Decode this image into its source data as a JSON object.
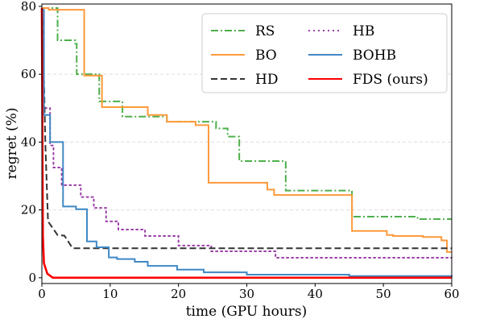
{
  "chart_data": {
    "type": "line",
    "title": "",
    "xlabel": "time (GPU hours)",
    "ylabel": "regret (%)",
    "xlim": [
      0,
      60
    ],
    "ylim": [
      -1.7,
      80.7
    ],
    "xticks": [
      0,
      10,
      20,
      30,
      40,
      50,
      60
    ],
    "yticks": [
      0,
      20,
      40,
      60,
      80
    ],
    "grid": "horizontal dashed",
    "legend_placement": "top-right",
    "series": [
      {
        "name": "RS",
        "color": "#4daf4a",
        "dash": "dashdot",
        "step": true,
        "x": [
          0,
          2.3,
          4.9,
          5.1,
          8.4,
          11.8,
          18.3,
          25.5,
          27.2,
          28.9,
          35.7,
          45.4,
          55,
          60
        ],
        "y": [
          79.5,
          70,
          69,
          60,
          52,
          47.5,
          46,
          44,
          41.6,
          34.4,
          25.7,
          18,
          17.3,
          17.3
        ]
      },
      {
        "name": "BO",
        "color": "#ff9a3c",
        "dash": "solid",
        "step": true,
        "x": [
          0,
          1,
          6.2,
          8.8,
          15.5,
          18.3,
          22.5,
          24.4,
          33,
          34,
          45.4,
          50.5,
          51.4,
          55.8,
          58.5,
          59.3,
          60
        ],
        "y": [
          79.5,
          79,
          59.6,
          50.3,
          48,
          46,
          45,
          28,
          26,
          24.4,
          13.8,
          12.6,
          12.3,
          12,
          11,
          7.6,
          7.6
        ]
      },
      {
        "name": "HD",
        "color": "#333333",
        "dash": "dashed",
        "step": false,
        "x": [
          0,
          0.35,
          0.5,
          0.9,
          2.3,
          3.3,
          4.5,
          60
        ],
        "y": [
          79,
          55,
          40,
          16.6,
          12.6,
          12.4,
          8.7,
          8.7
        ]
      },
      {
        "name": "HB",
        "color": "#9b3fa8",
        "dash": "dotted",
        "step": true,
        "x": [
          0,
          0.3,
          1.2,
          1.7,
          2.9,
          5.7,
          7.6,
          9.4,
          11.2,
          15.1,
          20,
          24.8,
          34.2,
          60
        ],
        "y": [
          79,
          50,
          39,
          32.5,
          27.3,
          23.8,
          20.6,
          16.6,
          14.2,
          12.3,
          9.5,
          7.8,
          5.9,
          5.9
        ]
      },
      {
        "name": "BOHB",
        "color": "#3f88c5",
        "dash": "solid",
        "step": true,
        "x": [
          0,
          0.3,
          1.2,
          3.1,
          5,
          6.6,
          8,
          9.8,
          11,
          13.6,
          15.5,
          19.8,
          23.7,
          30,
          45,
          60
        ],
        "y": [
          79,
          48,
          40,
          21,
          20.2,
          10.7,
          9,
          6,
          5.5,
          4.7,
          3.5,
          2.4,
          1.6,
          0.9,
          0.5,
          0.2
        ]
      },
      {
        "name": "FDS (ours)",
        "color": "#ff0000",
        "dash": "solid",
        "step": false,
        "x": [
          0,
          0.15,
          0.3,
          0.8,
          1.6,
          60
        ],
        "y": [
          79.5,
          12.3,
          4.3,
          1.2,
          0,
          0
        ]
      }
    ]
  }
}
